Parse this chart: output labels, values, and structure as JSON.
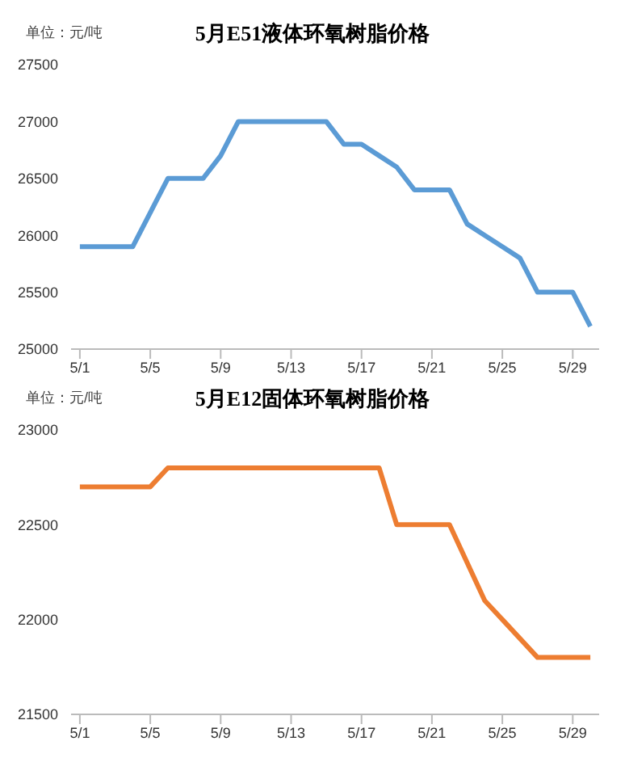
{
  "chart_data": [
    {
      "type": "line",
      "title": "5月E51液体环氧树脂价格",
      "annotations": [
        "单位：元/吨"
      ],
      "categories": [
        "5/1",
        null,
        null,
        null,
        "5/5",
        null,
        null,
        null,
        "5/9",
        null,
        null,
        null,
        "5/13",
        null,
        null,
        null,
        "5/17",
        null,
        null,
        null,
        "5/21",
        null,
        null,
        null,
        "5/25",
        null,
        null,
        null,
        "5/29",
        null
      ],
      "series": [
        {
          "color": "#5b9bd5",
          "values": [
            25900,
            25900,
            25900,
            25900,
            26200,
            26500,
            26500,
            26500,
            26700,
            27000,
            27000,
            27000,
            27000,
            27000,
            27000,
            26800,
            26800,
            26700,
            26600,
            26400,
            26400,
            26400,
            26100,
            26000,
            25900,
            25800,
            25500,
            25500,
            25500,
            25200
          ]
        }
      ],
      "ylim": [
        25000,
        27500
      ],
      "yticks": [
        25000,
        25500,
        26000,
        26500,
        27000,
        27500
      ],
      "grid": false,
      "legend": false,
      "marker": "none",
      "line_style": "solid"
    },
    {
      "type": "line",
      "title": "5月E12固体环氧树脂价格",
      "annotations": [
        "单位：元/吨"
      ],
      "categories": [
        "5/1",
        null,
        null,
        null,
        "5/5",
        null,
        null,
        null,
        "5/9",
        null,
        null,
        null,
        "5/13",
        null,
        null,
        null,
        "5/17",
        null,
        null,
        null,
        "5/21",
        null,
        null,
        null,
        "5/25",
        null,
        null,
        null,
        "5/29",
        null
      ],
      "series": [
        {
          "color": "#ed7d31",
          "values": [
            22700,
            22700,
            22700,
            22700,
            22700,
            22800,
            22800,
            22800,
            22800,
            22800,
            22800,
            22800,
            22800,
            22800,
            22800,
            22800,
            22800,
            22800,
            22500,
            22500,
            22500,
            22500,
            22300,
            22100,
            22000,
            21900,
            21800,
            21800,
            21800,
            21800
          ]
        }
      ],
      "ylim": [
        21500,
        23000
      ],
      "yticks": [
        21500,
        22000,
        22500,
        23000
      ],
      "grid": false,
      "legend": false,
      "marker": "none",
      "line_style": "solid"
    }
  ]
}
